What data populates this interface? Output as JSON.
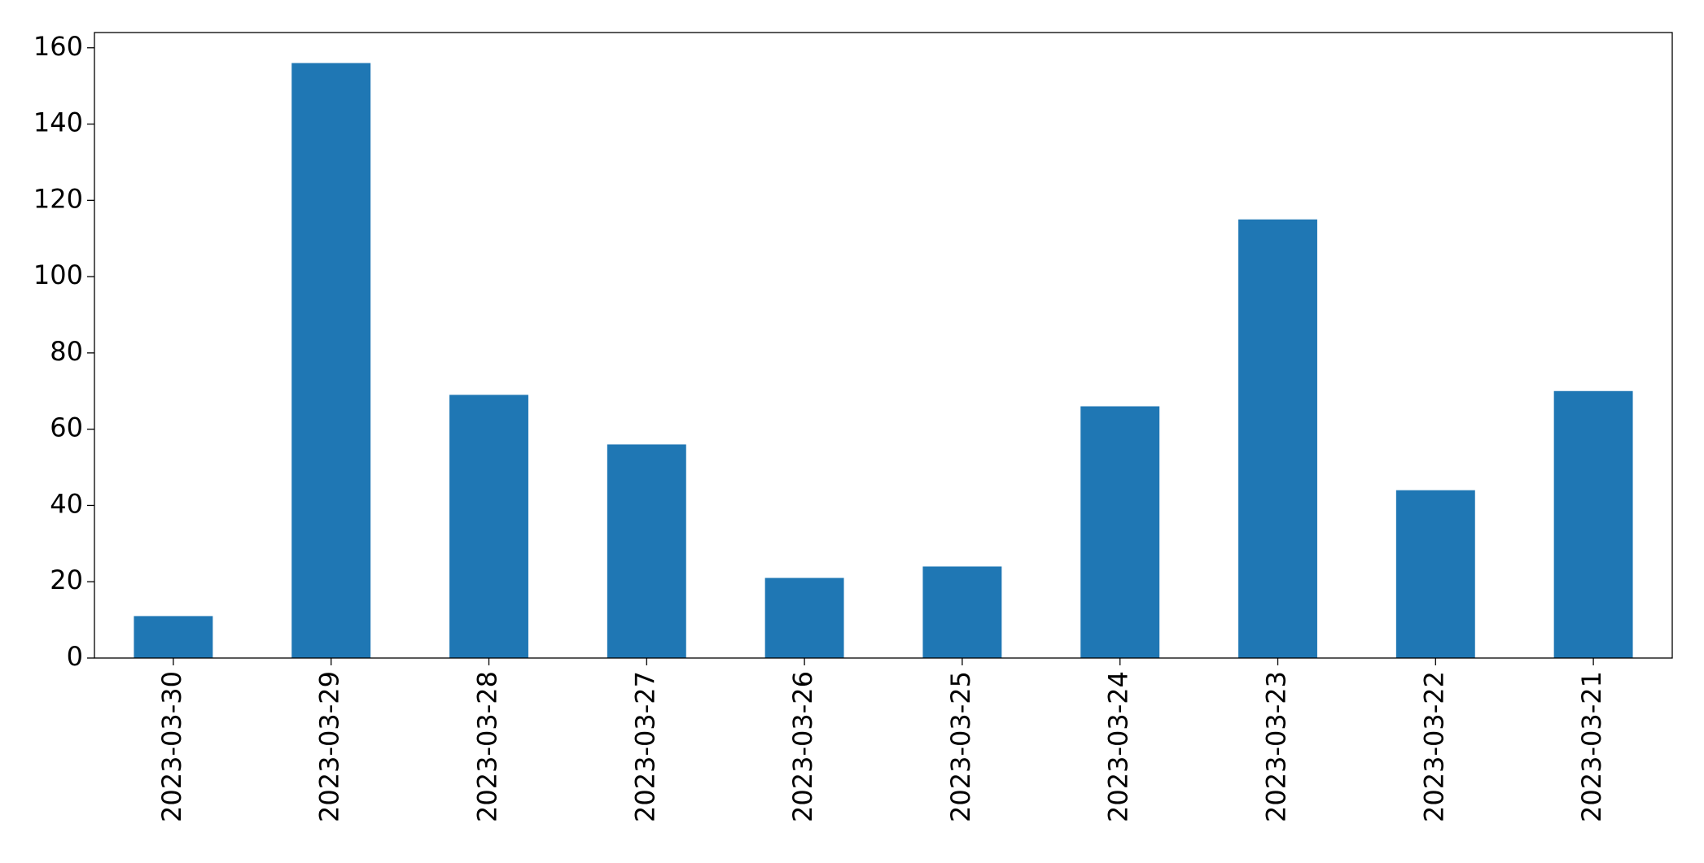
{
  "chart_data": {
    "type": "bar",
    "categories": [
      "2023-03-30",
      "2023-03-29",
      "2023-03-28",
      "2023-03-27",
      "2023-03-26",
      "2023-03-25",
      "2023-03-24",
      "2023-03-23",
      "2023-03-22",
      "2023-03-21"
    ],
    "values": [
      11,
      156,
      69,
      56,
      21,
      24,
      66,
      115,
      44,
      70
    ],
    "color": "#1f77b4",
    "ylim": [
      0,
      164
    ],
    "yticks": [
      0,
      20,
      40,
      60,
      80,
      100,
      120,
      140,
      160
    ],
    "grid": false
  }
}
